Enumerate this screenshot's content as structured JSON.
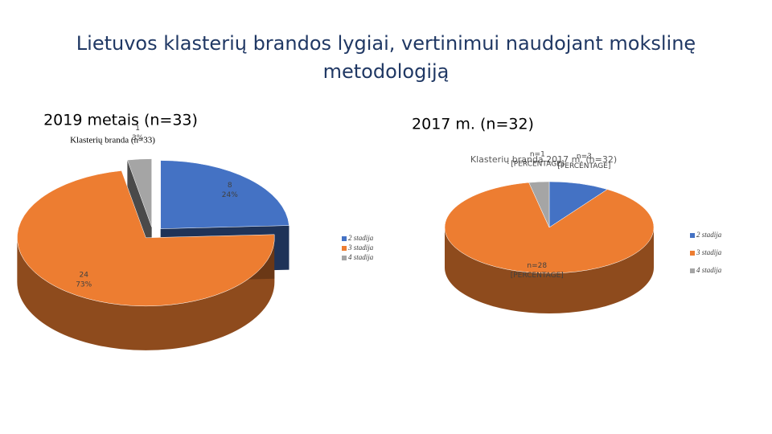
{
  "slide": {
    "title": "Lietuvos klasterių brandos lygiai, vertinimui naudojant mokslinę metodologiją",
    "subtitles": [
      "2019 metais (n=33)",
      "2017 m. (n=32)"
    ]
  },
  "chart_data": [
    {
      "type": "pie",
      "title": "Klasterių branda (n=33)",
      "categories": [
        "2 stadija",
        "3 stadija",
        "4 stadija"
      ],
      "values": [
        8,
        24,
        1
      ],
      "percent_labels": [
        "24%",
        "73%",
        "3%"
      ],
      "colors": [
        "#4472c4",
        "#ed7d31",
        "#a5a5a5"
      ]
    },
    {
      "type": "pie",
      "title": "Klasterių branda 2017 m. (n=32)",
      "categories": [
        "2 stadija",
        "3 stadija",
        "4 stadija"
      ],
      "values": [
        3,
        28,
        1
      ],
      "value_labels": [
        "n=3",
        "n=28",
        "n=1"
      ],
      "percent_labels": [
        "[PERCENTAGE]",
        "[PERCENTAGE]",
        "[PERCENTAGE]"
      ],
      "colors": [
        "#4472c4",
        "#ed7d31",
        "#a5a5a5"
      ]
    }
  ]
}
